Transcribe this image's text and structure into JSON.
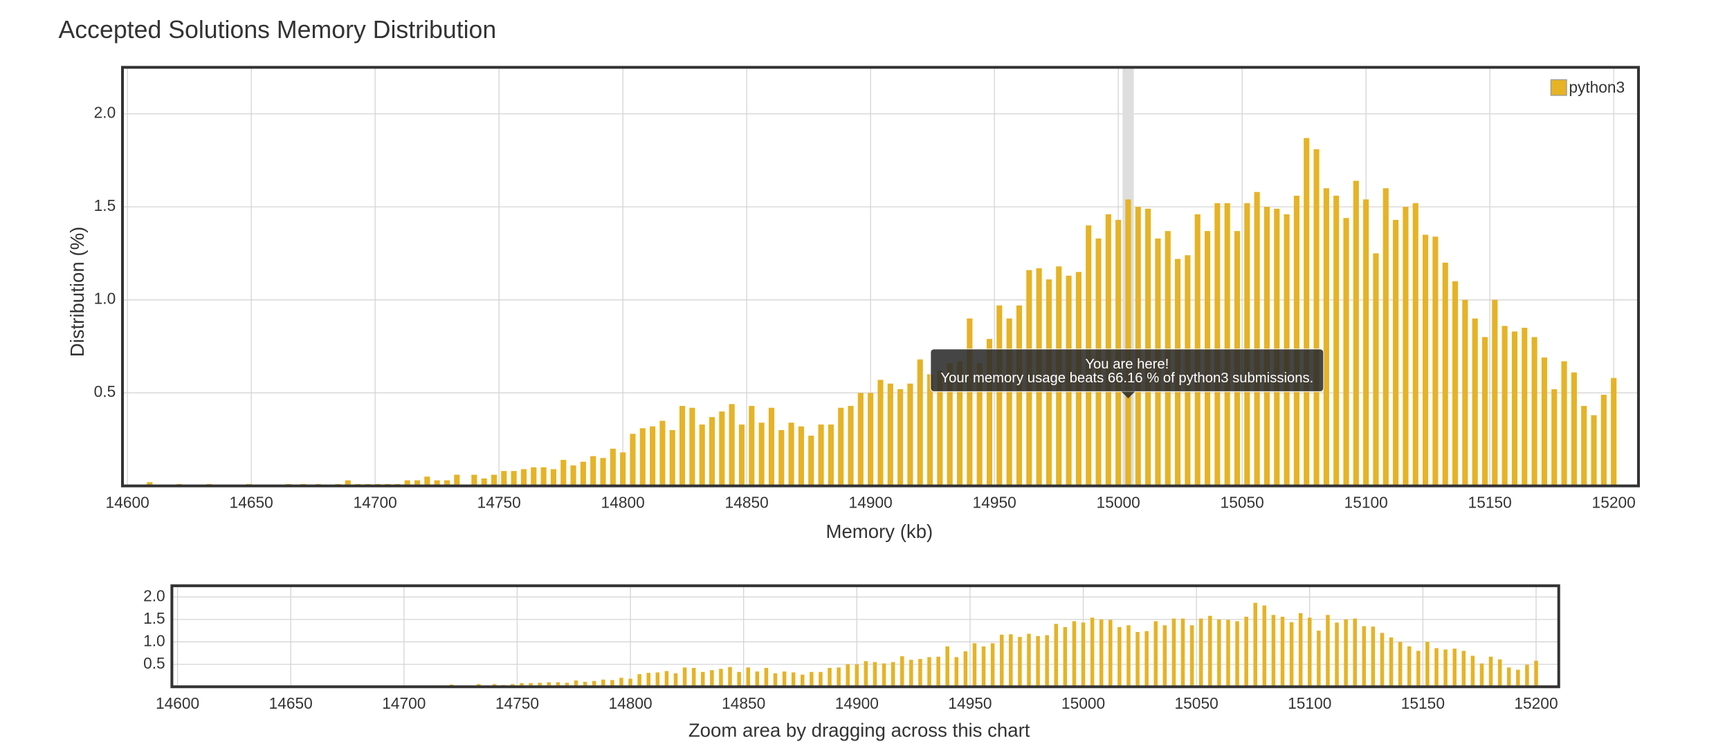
{
  "chart_data": {
    "type": "bar",
    "title": "Accepted Solutions Memory Distribution",
    "x_label": "Memory (kb)",
    "y_label": "Distribution (%)",
    "xlim": [
      14598,
      15210
    ],
    "ylim": [
      0,
      2.25
    ],
    "xticks": [
      14600,
      14650,
      14700,
      14750,
      14800,
      14850,
      14900,
      14950,
      15000,
      15050,
      15100,
      15150,
      15200
    ],
    "yticks": [
      0.5,
      {
        "value": 1,
        "label": "1.0"
      },
      1.5,
      {
        "value": 2,
        "label": "2.0"
      }
    ],
    "grid": true,
    "legend": "top-right",
    "highlight": 15004,
    "tooltip": [
      "You are here!",
      "Your memory usage beats 66.16 % of python3 submissions."
    ],
    "navigator": {
      "xlim": [
        14597.5,
        15210
      ],
      "label": "Zoom area by dragging across this chart"
    },
    "series": [
      {
        "name": "python3",
        "color": "#e6b325",
        "x": [
          14609,
          14621,
          14633,
          14649,
          14665,
          14671,
          14677,
          14685,
          14689,
          14693,
          14697,
          14701,
          14705,
          14709,
          14713,
          14717,
          14721,
          14725,
          14729,
          14733,
          14740,
          14744,
          14748,
          14752,
          14756,
          14760,
          14764,
          14768,
          14772,
          14776,
          14780,
          14784,
          14788,
          14792,
          14796,
          14800,
          14804,
          14808,
          14812,
          14816,
          14820,
          14824,
          14828,
          14832,
          14836,
          14840,
          14844,
          14848,
          14852,
          14856,
          14860,
          14864,
          14868,
          14872,
          14876,
          14880,
          14884,
          14888,
          14892,
          14896,
          14900,
          14904,
          14908,
          14912,
          14916,
          14920,
          14924,
          14928,
          14932,
          14936,
          14940,
          14944,
          14948,
          14952,
          14956,
          14960,
          14964,
          14968,
          14972,
          14976,
          14980,
          14984,
          14988,
          14992,
          14996,
          15000,
          15004,
          15008,
          15012,
          15016,
          15020,
          15024,
          15028,
          15032,
          15036,
          15040,
          15044,
          15048,
          15052,
          15056,
          15060,
          15064,
          15068,
          15072,
          15076,
          15080,
          15084,
          15088,
          15092,
          15096,
          15100,
          15104,
          15108,
          15112,
          15116,
          15120,
          15124,
          15128,
          15132,
          15136,
          15140,
          15144,
          15148,
          15152,
          15156,
          15160,
          15164,
          15168,
          15172,
          15176,
          15180,
          15184,
          15188,
          15192,
          15196,
          15200
        ],
        "values": [
          0.02,
          0.01,
          0.01,
          0.01,
          0.01,
          0.01,
          0.01,
          0.01,
          0.03,
          0.01,
          0.01,
          0.01,
          0.01,
          0.01,
          0.03,
          0.03,
          0.05,
          0.03,
          0.03,
          0.06,
          0.06,
          0.04,
          0.06,
          0.08,
          0.08,
          0.09,
          0.1,
          0.1,
          0.09,
          0.14,
          0.11,
          0.13,
          0.16,
          0.15,
          0.2,
          0.18,
          0.28,
          0.31,
          0.32,
          0.35,
          0.3,
          0.43,
          0.42,
          0.33,
          0.37,
          0.4,
          0.44,
          0.33,
          0.43,
          0.34,
          0.42,
          0.3,
          0.34,
          0.32,
          0.27,
          0.33,
          0.33,
          0.42,
          0.43,
          0.5,
          0.5,
          0.57,
          0.55,
          0.52,
          0.55,
          0.68,
          0.6,
          0.62,
          0.66,
          0.67,
          0.9,
          0.66,
          0.79,
          0.97,
          0.9,
          0.97,
          1.16,
          1.17,
          1.11,
          1.18,
          1.13,
          1.15,
          1.4,
          1.33,
          1.46,
          1.43,
          1.54,
          1.5,
          1.49,
          1.33,
          1.37,
          1.22,
          1.24,
          1.46,
          1.37,
          1.52,
          1.52,
          1.37,
          1.52,
          1.58,
          1.5,
          1.49,
          1.46,
          1.56,
          1.87,
          1.81,
          1.6,
          1.56,
          1.44,
          1.64,
          1.54,
          1.25,
          1.6,
          1.43,
          1.5,
          1.52,
          1.35,
          1.34,
          1.2,
          1.1,
          1.0,
          0.9,
          0.8,
          1.0,
          0.86,
          0.83,
          0.85,
          0.8,
          0.69,
          0.52,
          0.67,
          0.61,
          0.43,
          0.38,
          0.49,
          0.58
        ]
      }
    ]
  }
}
